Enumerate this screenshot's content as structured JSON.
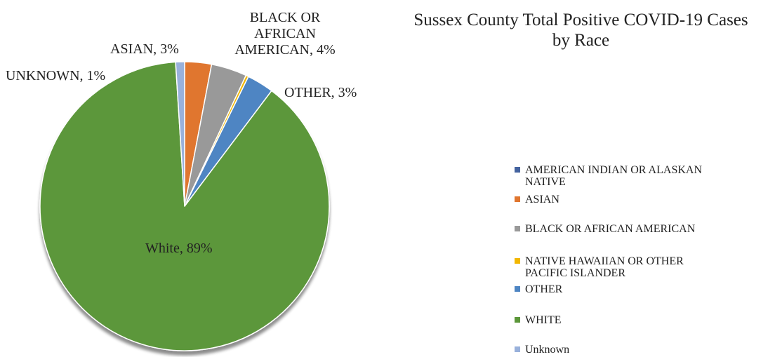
{
  "chart_data": {
    "type": "pie",
    "title": "Sussex County Total Positive COVID-19 Cases by Race",
    "title_lines": [
      "Sussex County Total Positive COVID-19 Cases",
      "by Race"
    ],
    "start_angle_deg": 0,
    "direction": "clockwise",
    "slices": [
      {
        "name": "ASIAN",
        "value": 3,
        "color": "#E0762F",
        "label": "ASIAN, 3%"
      },
      {
        "name": "BLACK OR AFRICAN AMERICAN",
        "value": 4,
        "color": "#999999",
        "label_lines": [
          "BLACK OR",
          "AFRICAN",
          "AMERICAN, 4%"
        ]
      },
      {
        "name": "NATIVE HAWAIIAN OR OTHER PACIFIC ISLANDER",
        "value": 0.3,
        "color": "#F2B700"
      },
      {
        "name": "OTHER",
        "value": 3,
        "color": "#4E85C3",
        "label": "OTHER, 3%"
      },
      {
        "name": "WHITE",
        "value": 89,
        "color": "#5C973A",
        "label": "White, 89%"
      },
      {
        "name": "Unknown",
        "value": 1,
        "color": "#99B1DB",
        "label": "UNKNOWN, 1%"
      },
      {
        "name": "AMERICAN INDIAN OR ALASKAN NATIVE",
        "value": 0,
        "color": "#44639F"
      }
    ],
    "legend": {
      "position": "right",
      "entries": [
        {
          "text_lines": [
            "AMERICAN INDIAN OR ALASKAN",
            "NATIVE"
          ],
          "color": "#44639F"
        },
        {
          "text_lines": [
            "ASIAN"
          ],
          "color": "#E0762F"
        },
        {
          "text_lines": [
            "BLACK OR AFRICAN AMERICAN"
          ],
          "color": "#999999"
        },
        {
          "text_lines": [
            "NATIVE HAWAIIAN OR OTHER",
            "PACIFIC ISLANDER"
          ],
          "color": "#F2B700"
        },
        {
          "text_lines": [
            "OTHER"
          ],
          "color": "#4E85C3"
        },
        {
          "text_lines": [
            "WHITE"
          ],
          "color": "#5C973A"
        },
        {
          "text_lines": [
            "Unknown"
          ],
          "color": "#99B1DB"
        }
      ]
    }
  }
}
